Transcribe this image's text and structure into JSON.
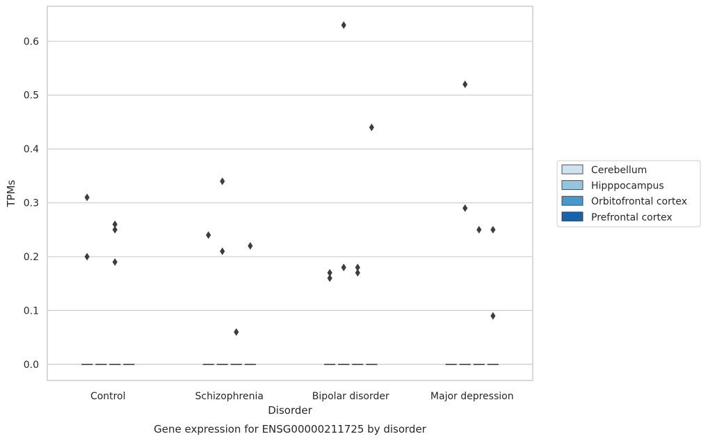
{
  "chart_data": {
    "type": "box",
    "title": "",
    "caption": "Gene expression for ENSG00000211725 by disorder",
    "xlabel": "Disorder",
    "ylabel": "TPMs",
    "ylim": [
      -0.03,
      0.665
    ],
    "yticks": [
      0.0,
      0.1,
      0.2,
      0.3,
      0.4,
      0.5,
      0.6
    ],
    "ytick_labels": [
      "0.0",
      "0.1",
      "0.2",
      "0.3",
      "0.4",
      "0.5",
      "0.6"
    ],
    "grid": "horizontal",
    "legend_position": "right",
    "categories": [
      "Control",
      "Schizophrenia",
      "Bipolar disorder",
      "Major depression"
    ],
    "series": [
      {
        "name": "Cerebellum",
        "color": "#d0e1f2",
        "median": [
          0,
          0,
          0,
          0
        ],
        "outliers": [
          [
            0.31,
            0.2
          ],
          [
            0.24
          ],
          [
            0.16,
            0.17
          ],
          []
        ]
      },
      {
        "name": "Hipppocampus",
        "color": "#94c4df",
        "median": [
          0,
          0,
          0,
          0
        ],
        "outliers": [
          [],
          [
            0.34,
            0.21
          ],
          [
            0.63,
            0.18
          ],
          [
            0.52,
            0.29
          ]
        ]
      },
      {
        "name": "Orbitofrontal cortex",
        "color": "#4a98c9",
        "median": [
          0,
          0,
          0,
          0
        ],
        "outliers": [
          [
            0.26,
            0.25,
            0.19
          ],
          [
            0.06
          ],
          [
            0.18,
            0.17
          ],
          [
            0.25
          ]
        ]
      },
      {
        "name": "Prefrontal cortex",
        "color": "#1764ab",
        "median": [
          0,
          0,
          0,
          0
        ],
        "outliers": [
          [],
          [
            0.22
          ],
          [
            0.44
          ],
          [
            0.09,
            0.25
          ]
        ]
      }
    ]
  }
}
